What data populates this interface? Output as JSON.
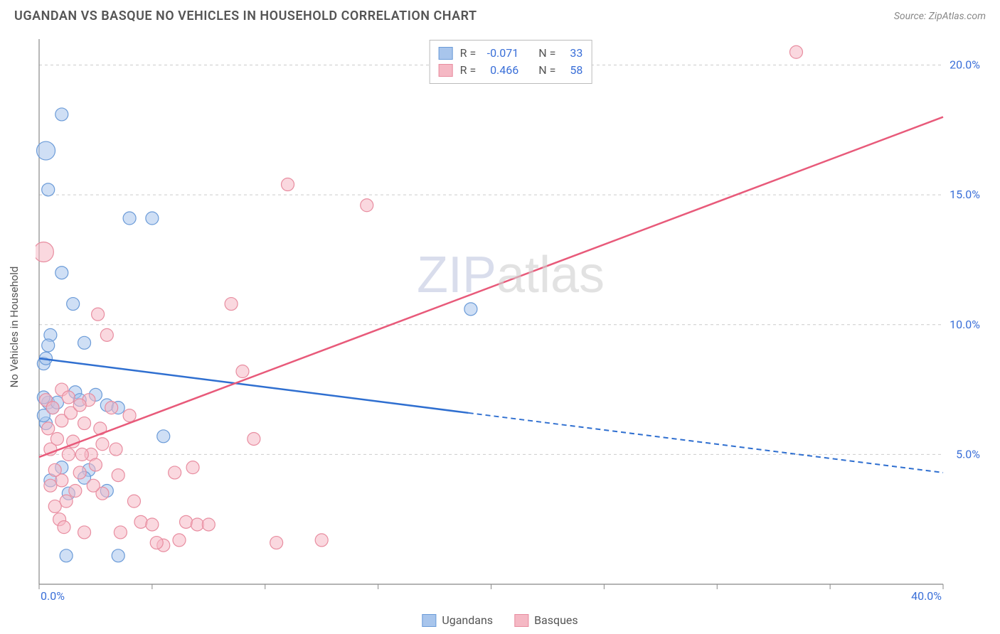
{
  "title": "UGANDAN VS BASQUE NO VEHICLES IN HOUSEHOLD CORRELATION CHART",
  "source": "Source: ZipAtlas.com",
  "watermark": "ZIPatlas",
  "ylabel": "No Vehicles in Household",
  "chart": {
    "type": "scatter",
    "xlim": [
      0,
      40
    ],
    "ylim": [
      0,
      21
    ],
    "x_ticks": [
      0,
      5,
      10,
      15,
      20,
      25,
      30,
      35,
      40
    ],
    "x_tick_labels_shown": {
      "0": "0.0%",
      "40": "40.0%"
    },
    "y_gridlines": [
      5,
      10,
      15,
      20
    ],
    "y_tick_labels": {
      "5": "5.0%",
      "10": "10.0%",
      "15": "15.0%",
      "20": "20.0%"
    },
    "background_color": "#ffffff",
    "grid_color": "#cccccc",
    "axis_color": "#888888",
    "tick_label_color": "#3a6fd8",
    "marker_radius_default": 9,
    "series": [
      {
        "name": "Ugandans",
        "fill_color": "#a8c5ec",
        "stroke_color": "#6b9bd8",
        "fill_opacity": 0.55,
        "trend": {
          "solid": {
            "x1": 0,
            "y1": 8.7,
            "x2": 19,
            "y2": 6.6
          },
          "dashed": {
            "x1": 19,
            "y1": 6.6,
            "x2": 40,
            "y2": 4.3
          },
          "color": "#2f6fd0",
          "width": 2.5
        },
        "points": [
          {
            "x": 0.2,
            "y": 8.5
          },
          {
            "x": 0.3,
            "y": 8.7
          },
          {
            "x": 0.5,
            "y": 9.6
          },
          {
            "x": 0.4,
            "y": 15.2
          },
          {
            "x": 1.0,
            "y": 18.1
          },
          {
            "x": 0.3,
            "y": 16.7,
            "r": 13
          },
          {
            "x": 1.0,
            "y": 12.0
          },
          {
            "x": 0.4,
            "y": 7.0
          },
          {
            "x": 0.2,
            "y": 7.2
          },
          {
            "x": 0.6,
            "y": 6.8
          },
          {
            "x": 0.3,
            "y": 6.2
          },
          {
            "x": 1.5,
            "y": 10.8
          },
          {
            "x": 1.0,
            "y": 4.5
          },
          {
            "x": 2.2,
            "y": 4.4
          },
          {
            "x": 1.3,
            "y": 3.5
          },
          {
            "x": 3.0,
            "y": 3.6
          },
          {
            "x": 4.0,
            "y": 14.1
          },
          {
            "x": 5.0,
            "y": 14.1
          },
          {
            "x": 1.6,
            "y": 7.4
          },
          {
            "x": 3.0,
            "y": 6.9
          },
          {
            "x": 2.0,
            "y": 4.1
          },
          {
            "x": 3.5,
            "y": 6.8
          },
          {
            "x": 5.5,
            "y": 5.7
          },
          {
            "x": 1.2,
            "y": 1.1
          },
          {
            "x": 3.5,
            "y": 1.1
          },
          {
            "x": 19.1,
            "y": 10.6
          },
          {
            "x": 0.8,
            "y": 7.0
          },
          {
            "x": 2.5,
            "y": 7.3
          },
          {
            "x": 0.5,
            "y": 4.0
          },
          {
            "x": 1.8,
            "y": 7.1
          },
          {
            "x": 0.4,
            "y": 9.2
          },
          {
            "x": 2.0,
            "y": 9.3
          },
          {
            "x": 0.2,
            "y": 6.5
          }
        ]
      },
      {
        "name": "Basques",
        "fill_color": "#f5b8c4",
        "stroke_color": "#e88da0",
        "fill_opacity": 0.55,
        "trend": {
          "solid": {
            "x1": 0,
            "y1": 4.9,
            "x2": 40,
            "y2": 18.0
          },
          "color": "#e85a7a",
          "width": 2.5
        },
        "points": [
          {
            "x": 0.3,
            "y": 7.1
          },
          {
            "x": 0.2,
            "y": 12.8,
            "r": 14
          },
          {
            "x": 0.5,
            "y": 5.2
          },
          {
            "x": 0.8,
            "y": 5.6
          },
          {
            "x": 1.0,
            "y": 6.3
          },
          {
            "x": 1.3,
            "y": 5.0
          },
          {
            "x": 1.5,
            "y": 5.5
          },
          {
            "x": 1.8,
            "y": 4.3
          },
          {
            "x": 1.0,
            "y": 4.0
          },
          {
            "x": 0.7,
            "y": 4.4
          },
          {
            "x": 2.0,
            "y": 6.2
          },
          {
            "x": 2.3,
            "y": 5.0
          },
          {
            "x": 2.5,
            "y": 4.6
          },
          {
            "x": 2.8,
            "y": 3.5
          },
          {
            "x": 3.2,
            "y": 6.8
          },
          {
            "x": 3.5,
            "y": 4.2
          },
          {
            "x": 4.0,
            "y": 6.5
          },
          {
            "x": 4.5,
            "y": 2.4
          },
          {
            "x": 5.0,
            "y": 2.3
          },
          {
            "x": 5.5,
            "y": 1.5
          },
          {
            "x": 6.0,
            "y": 4.3
          },
          {
            "x": 6.5,
            "y": 2.4
          },
          {
            "x": 7.0,
            "y": 2.3
          },
          {
            "x": 1.2,
            "y": 3.2
          },
          {
            "x": 1.6,
            "y": 3.6
          },
          {
            "x": 2.6,
            "y": 10.4
          },
          {
            "x": 3.0,
            "y": 9.6
          },
          {
            "x": 1.0,
            "y": 7.5
          },
          {
            "x": 0.4,
            "y": 6.0
          },
          {
            "x": 0.6,
            "y": 6.8
          },
          {
            "x": 2.2,
            "y": 7.1
          },
          {
            "x": 2.0,
            "y": 2.0
          },
          {
            "x": 5.2,
            "y": 1.6
          },
          {
            "x": 6.2,
            "y": 1.7
          },
          {
            "x": 4.2,
            "y": 3.2
          },
          {
            "x": 3.6,
            "y": 2.0
          },
          {
            "x": 1.4,
            "y": 6.6
          },
          {
            "x": 9.0,
            "y": 8.2
          },
          {
            "x": 8.5,
            "y": 10.8
          },
          {
            "x": 10.5,
            "y": 1.6
          },
          {
            "x": 11.0,
            "y": 15.4
          },
          {
            "x": 12.5,
            "y": 1.7
          },
          {
            "x": 14.5,
            "y": 14.6
          },
          {
            "x": 9.5,
            "y": 5.6
          },
          {
            "x": 33.5,
            "y": 20.5
          },
          {
            "x": 0.9,
            "y": 2.5
          },
          {
            "x": 1.1,
            "y": 2.2
          },
          {
            "x": 0.7,
            "y": 3.0
          },
          {
            "x": 1.8,
            "y": 6.9
          },
          {
            "x": 2.4,
            "y": 3.8
          },
          {
            "x": 1.3,
            "y": 7.2
          },
          {
            "x": 2.8,
            "y": 5.4
          },
          {
            "x": 3.4,
            "y": 5.2
          },
          {
            "x": 0.5,
            "y": 3.8
          },
          {
            "x": 1.9,
            "y": 5.0
          },
          {
            "x": 2.7,
            "y": 6.0
          },
          {
            "x": 6.8,
            "y": 4.5
          },
          {
            "x": 7.5,
            "y": 2.3
          }
        ]
      }
    ]
  },
  "stats": [
    {
      "swatch_fill": "#a8c5ec",
      "swatch_stroke": "#6b9bd8",
      "r": "-0.071",
      "n": "33"
    },
    {
      "swatch_fill": "#f5b8c4",
      "swatch_stroke": "#e88da0",
      "r": "0.466",
      "n": "58"
    }
  ],
  "legend": [
    {
      "swatch_fill": "#a8c5ec",
      "swatch_stroke": "#6b9bd8",
      "label": "Ugandans"
    },
    {
      "swatch_fill": "#f5b8c4",
      "swatch_stroke": "#e88da0",
      "label": "Basques"
    }
  ]
}
